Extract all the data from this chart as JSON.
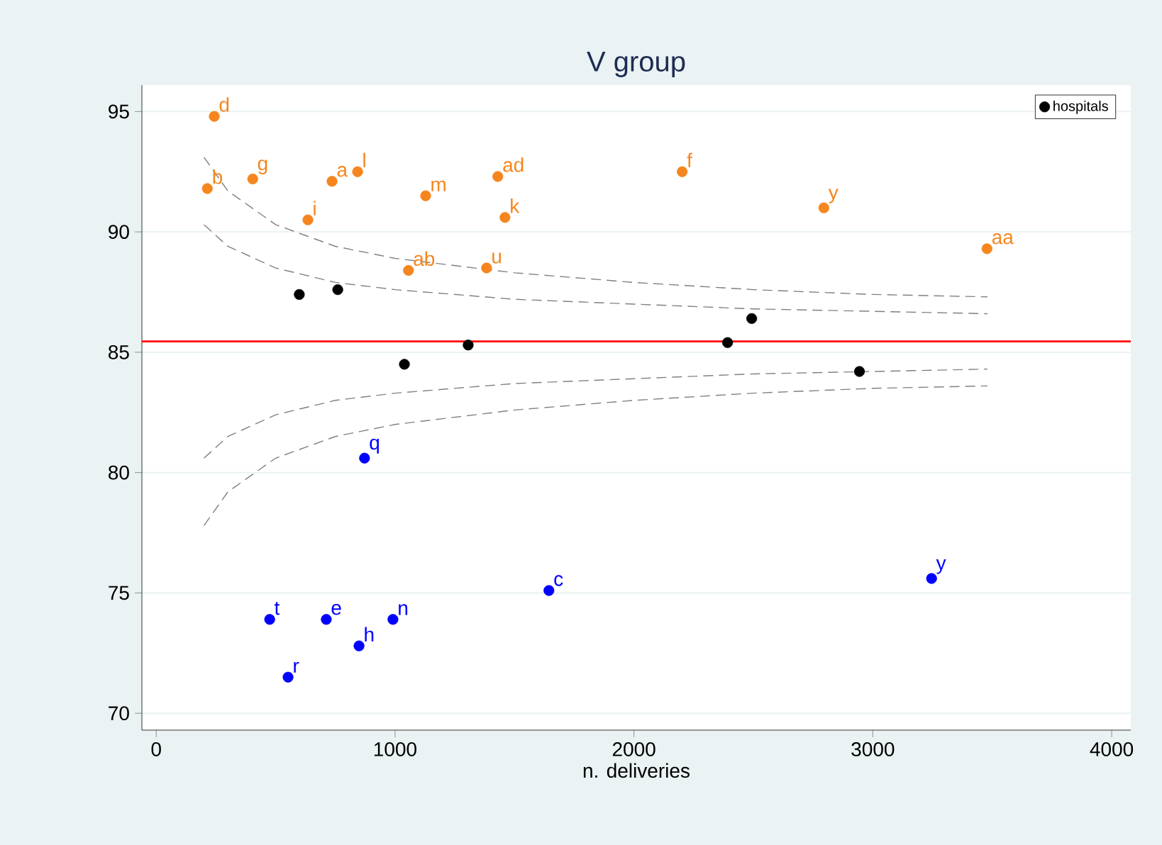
{
  "chart_data": {
    "type": "scatter",
    "title": "V group",
    "xlabel": "n. deliveries",
    "xlim": [
      -60,
      4080
    ],
    "xticks": [
      0,
      1000,
      2000,
      3000,
      4000
    ],
    "ylim": [
      69.3,
      96.1
    ],
    "yticks": [
      70,
      75,
      80,
      85,
      90,
      95
    ],
    "grid": "y",
    "legend": "top right",
    "series": [
      {
        "name": "hospitals",
        "marker": "circle",
        "color": "#000000",
        "x": [
          599,
          760,
          1039,
          1306,
          2392,
          2493,
          2944
        ],
        "values": [
          87.4,
          87.6,
          84.5,
          85.3,
          85.4,
          86.4,
          84.2
        ]
      },
      {
        "marker": "circle",
        "color": "#f5861f",
        "x": [
          243,
          214,
          404,
          736,
          843,
          635,
          1128,
          1430,
          1460,
          1056,
          1383,
          2202,
          2795,
          3478
        ],
        "values": [
          94.8,
          91.8,
          92.2,
          92.1,
          92.5,
          90.5,
          91.5,
          92.3,
          90.6,
          88.4,
          88.5,
          92.5,
          91.0,
          89.3
        ]
      },
      {
        "marker": "circle",
        "color": "#0000ff",
        "x": [
          872,
          475,
          712,
          849,
          991,
          552,
          1644,
          3246
        ],
        "values": [
          80.6,
          73.9,
          73.9,
          72.8,
          73.9,
          71.5,
          75.1,
          75.6
        ]
      },
      {
        "type": "line",
        "marker": "none",
        "line_style": "dashed",
        "color": "#808080",
        "x": [
          200,
          300,
          500,
          750,
          1000,
          1500,
          2000,
          2500,
          3000,
          3480
        ],
        "values": [
          93.1,
          91.7,
          90.3,
          89.4,
          88.9,
          88.3,
          87.9,
          87.6,
          87.4,
          87.3
        ]
      },
      {
        "type": "line",
        "marker": "none",
        "line_style": "dashed",
        "color": "#808080",
        "x": [
          200,
          300,
          500,
          750,
          1000,
          1500,
          2000,
          2500,
          3000,
          3480
        ],
        "values": [
          90.3,
          89.4,
          88.5,
          87.9,
          87.6,
          87.2,
          87.0,
          86.8,
          86.7,
          86.6
        ]
      },
      {
        "type": "line",
        "marker": "none",
        "line_style": "dashed",
        "color": "#808080",
        "x": [
          200,
          300,
          500,
          750,
          1000,
          1500,
          2000,
          2500,
          3000,
          3480
        ],
        "values": [
          80.6,
          81.5,
          82.4,
          83.0,
          83.3,
          83.7,
          83.9,
          84.1,
          84.2,
          84.3
        ]
      },
      {
        "type": "line",
        "marker": "none",
        "line_style": "dashed",
        "color": "#808080",
        "x": [
          200,
          300,
          500,
          750,
          1000,
          1500,
          2000,
          2500,
          3000,
          3480
        ],
        "values": [
          77.8,
          79.2,
          80.6,
          81.5,
          82.0,
          82.6,
          83.0,
          83.3,
          83.5,
          83.6
        ]
      }
    ],
    "ref_lines": [
      {
        "axis": "y",
        "value": 85.45,
        "color": "#ff0000"
      }
    ],
    "annotations": [
      {
        "text": "d",
        "x": 243,
        "y": 94.8
      },
      {
        "text": "b",
        "x": 214,
        "y": 91.8
      },
      {
        "text": "g",
        "x": 404,
        "y": 92.2
      },
      {
        "text": "a",
        "x": 736,
        "y": 92.1
      },
      {
        "text": "l",
        "x": 843,
        "y": 92.5
      },
      {
        "text": "i",
        "x": 635,
        "y": 90.5
      },
      {
        "text": "m",
        "x": 1128,
        "y": 91.5
      },
      {
        "text": "ad",
        "x": 1430,
        "y": 92.3
      },
      {
        "text": "k",
        "x": 1460,
        "y": 90.6
      },
      {
        "text": "ab",
        "x": 1056,
        "y": 88.4
      },
      {
        "text": "u",
        "x": 1383,
        "y": 88.5
      },
      {
        "text": "f",
        "x": 2202,
        "y": 92.5
      },
      {
        "text": "y",
        "x": 2795,
        "y": 91.0
      },
      {
        "text": "aa",
        "x": 3478,
        "y": 89.3
      },
      {
        "text": "q",
        "x": 872,
        "y": 80.6
      },
      {
        "text": "t",
        "x": 475,
        "y": 73.9
      },
      {
        "text": "e",
        "x": 712,
        "y": 73.9
      },
      {
        "text": "h",
        "x": 849,
        "y": 72.8
      },
      {
        "text": "n",
        "x": 991,
        "y": 73.9
      },
      {
        "text": "r",
        "x": 552,
        "y": 71.5
      },
      {
        "text": "c",
        "x": 1644,
        "y": 75.1
      },
      {
        "text": "y",
        "x": 3246,
        "y": 75.6
      }
    ]
  }
}
